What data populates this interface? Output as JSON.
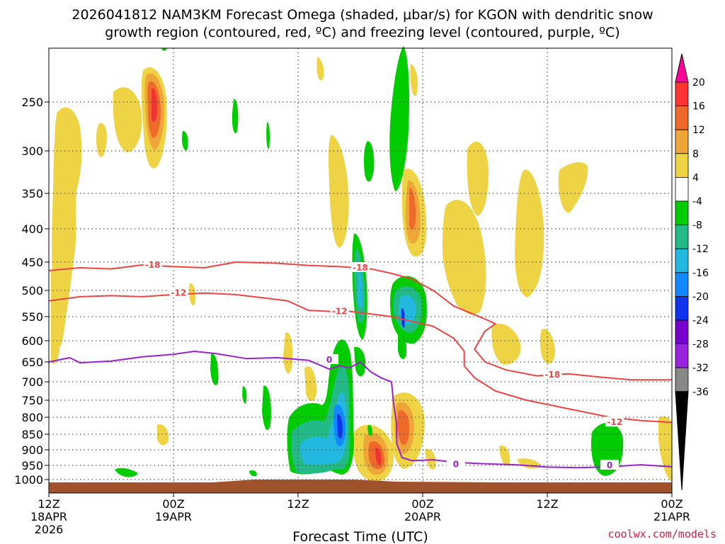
{
  "chart_data": {
    "type": "heatmap",
    "title_line1": "2026041812 NAM3KM Forecast Omega (shaded, μbar/s) for KGON with dendritic snow",
    "title_line2": "growth region (contoured, red, ºC) and freezing level (contoured, purple, ºC)",
    "xlabel": "Forecast Time (UTC)",
    "credit": "coolwx.com/models",
    "x_ticks": [
      {
        "hour": 0,
        "line1": "12Z",
        "line2": "18APR",
        "line3": "2026"
      },
      {
        "hour": 12,
        "line1": "00Z",
        "line2": "19APR",
        "line3": ""
      },
      {
        "hour": 24,
        "line1": "12Z",
        "line2": "",
        "line3": ""
      },
      {
        "hour": 36,
        "line1": "00Z",
        "line2": "20APR",
        "line3": ""
      },
      {
        "hour": 48,
        "line1": "12Z",
        "line2": "",
        "line3": ""
      },
      {
        "hour": 60,
        "line1": "00Z",
        "line2": "21APR",
        "line3": ""
      }
    ],
    "y_ticks": [
      250,
      300,
      350,
      400,
      450,
      500,
      550,
      600,
      650,
      700,
      750,
      800,
      850,
      900,
      950,
      1000
    ],
    "y_range_hpa": [
      200,
      1030
    ],
    "x_range_hours": [
      0,
      60
    ],
    "colorbar": {
      "labels": [
        20,
        16,
        12,
        8,
        4,
        -4,
        -8,
        -12,
        -16,
        -20,
        -24,
        -28,
        -32,
        -36
      ],
      "colors": [
        "#ff0099",
        "#ff3333",
        "#ee6a2a",
        "#eea638",
        "#eed345",
        "#ffffff",
        "#00cc00",
        "#22bb88",
        "#22b8e0",
        "#1188ff",
        "#1133ee",
        "#7700cc",
        "#9922dd",
        "#888888",
        "#000000"
      ]
    },
    "contours": [
      {
        "label": "-18",
        "color": "#ee4444",
        "points": [
          [
            0,
            465
          ],
          [
            3,
            460
          ],
          [
            6,
            462
          ],
          [
            9,
            455
          ],
          [
            12,
            458
          ],
          [
            15,
            460
          ],
          [
            18,
            450
          ],
          [
            22,
            452
          ],
          [
            25,
            456
          ],
          [
            28,
            458
          ],
          [
            31,
            462
          ],
          [
            33,
            470
          ],
          [
            35,
            480
          ],
          [
            37,
            500
          ],
          [
            39,
            530
          ],
          [
            42,
            555
          ],
          [
            43,
            565
          ],
          [
            42,
            580
          ],
          [
            41,
            620
          ],
          [
            42,
            650
          ],
          [
            44,
            670
          ],
          [
            47,
            685
          ],
          [
            50,
            680
          ],
          [
            53,
            688
          ],
          [
            56,
            695
          ],
          [
            60,
            695
          ]
        ],
        "label_pts": [
          [
            10,
            455
          ],
          [
            30,
            460
          ],
          [
            48.5,
            682
          ]
        ]
      },
      {
        "label": "-12",
        "color": "#ee4444",
        "points": [
          [
            0,
            520
          ],
          [
            3,
            512
          ],
          [
            6,
            510
          ],
          [
            9,
            512
          ],
          [
            12,
            508
          ],
          [
            15,
            505
          ],
          [
            18,
            508
          ],
          [
            21,
            515
          ],
          [
            23,
            520
          ],
          [
            25,
            538
          ],
          [
            27,
            540
          ],
          [
            29,
            540
          ],
          [
            31,
            545
          ],
          [
            33,
            550
          ],
          [
            35,
            560
          ],
          [
            37,
            570
          ],
          [
            39,
            595
          ],
          [
            40,
            625
          ],
          [
            40,
            660
          ],
          [
            41,
            690
          ],
          [
            43,
            725
          ],
          [
            46,
            750
          ],
          [
            50,
            775
          ],
          [
            54,
            800
          ],
          [
            57,
            810
          ],
          [
            60,
            815
          ]
        ],
        "label_pts": [
          [
            12.5,
            505
          ],
          [
            28,
            540
          ],
          [
            54.5,
            815
          ]
        ]
      },
      {
        "label": "0",
        "color": "#9922cc",
        "points": [
          [
            0,
            650
          ],
          [
            2,
            640
          ],
          [
            3,
            652
          ],
          [
            6,
            648
          ],
          [
            9,
            638
          ],
          [
            12,
            632
          ],
          [
            14,
            625
          ],
          [
            16,
            630
          ],
          [
            19,
            642
          ],
          [
            22,
            640
          ],
          [
            25,
            646
          ],
          [
            27,
            668
          ],
          [
            28,
            660
          ],
          [
            29,
            665
          ],
          [
            30,
            650
          ],
          [
            31,
            675
          ],
          [
            32,
            690
          ],
          [
            33,
            700
          ],
          [
            33.2,
            760
          ],
          [
            33.5,
            820
          ],
          [
            33.5,
            880
          ],
          [
            34,
            925
          ],
          [
            35,
            935
          ],
          [
            37,
            932
          ],
          [
            39,
            940
          ],
          [
            42,
            945
          ],
          [
            45,
            948
          ],
          [
            48,
            956
          ],
          [
            51,
            958
          ],
          [
            54,
            955
          ],
          [
            57,
            948
          ],
          [
            60,
            955
          ]
        ],
        "label_pts": [
          [
            27,
            645
          ],
          [
            39.2,
            947
          ],
          [
            54,
            950
          ]
        ]
      }
    ]
  }
}
